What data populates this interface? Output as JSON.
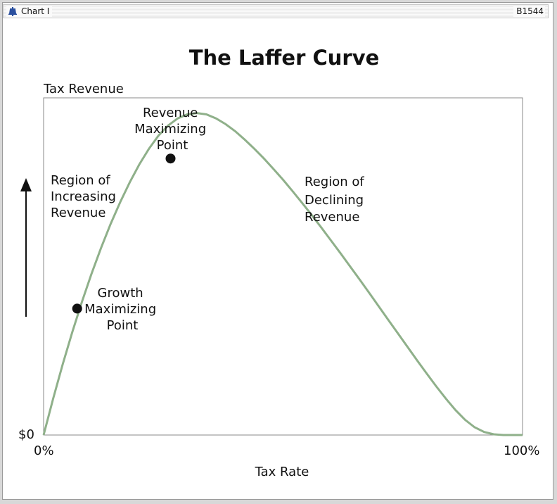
{
  "window": {
    "title": "Chart I",
    "code": "B1544",
    "icon": "liberty-bell-icon"
  },
  "chart_data": {
    "type": "line",
    "title": "The Laffer Curve",
    "xlabel": "Tax Rate",
    "ylabel": "Tax Revenue",
    "x_tick_labels": [
      "0%",
      "100%"
    ],
    "y_tick_labels": [
      "$0"
    ],
    "xlim": [
      0,
      100
    ],
    "ylim": [
      0,
      100
    ],
    "grid": false,
    "line_color": "#8fb08a",
    "series": [
      {
        "x": [
          0,
          2,
          4,
          6,
          8,
          10,
          12,
          14,
          16,
          18,
          20,
          22,
          24,
          26,
          28,
          30,
          32,
          34,
          36,
          38,
          40,
          42,
          44,
          46,
          48,
          50,
          52,
          54,
          56,
          58,
          60,
          62,
          64,
          66,
          68,
          70,
          72,
          74,
          76,
          78,
          80,
          82,
          84,
          86,
          88,
          90,
          92,
          94,
          96,
          98,
          100
        ],
        "values": [
          0,
          10.8,
          21.0,
          30.6,
          39.5,
          47.8,
          55.5,
          62.6,
          69.1,
          75.0,
          80.3,
          84.9,
          88.8,
          91.8,
          93.9,
          95.1,
          95.5,
          95.1,
          93.9,
          92.2,
          90.1,
          87.6,
          84.9,
          82.0,
          78.9,
          75.7,
          72.3,
          68.8,
          65.2,
          61.5,
          57.7,
          53.9,
          50.0,
          46.1,
          42.1,
          38.1,
          34.1,
          30.1,
          26.1,
          22.1,
          18.2,
          14.4,
          10.8,
          7.4,
          4.5,
          2.3,
          0.9,
          0.2,
          0,
          0,
          0
        ]
      }
    ],
    "points": [
      {
        "name": "growth-maximizing-point",
        "x": 7,
        "y": 37.5,
        "label": [
          "Growth",
          "Maximizing",
          "Point"
        ]
      },
      {
        "name": "revenue-maximizing-point",
        "x": 26.5,
        "y": 82,
        "label": [
          "Revenue",
          "Maximizing",
          "Point"
        ]
      }
    ],
    "annotations": [
      {
        "name": "region-increasing",
        "lines": [
          "Region of",
          "Increasing",
          "Revenue"
        ]
      },
      {
        "name": "region-declining",
        "lines": [
          "Region of",
          "Declining",
          "Revenue"
        ]
      }
    ]
  }
}
